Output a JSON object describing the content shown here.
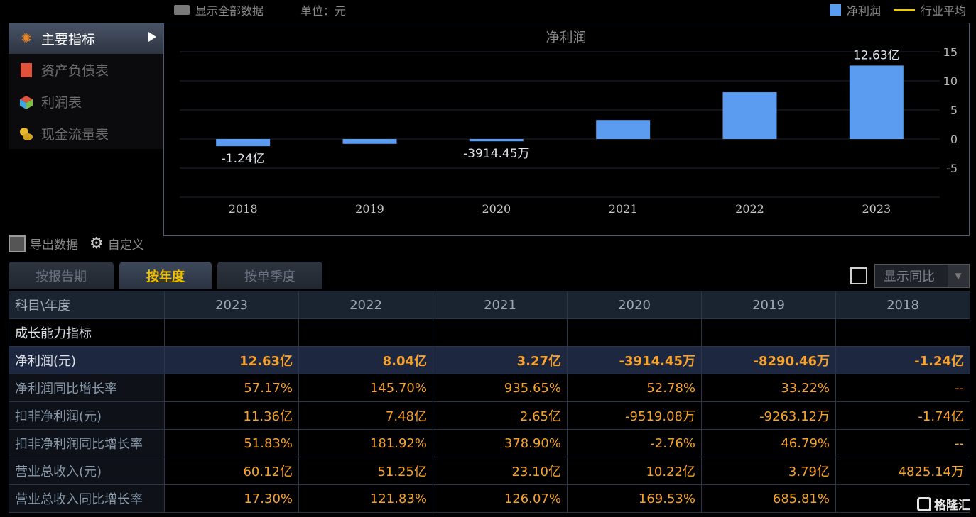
{
  "topbar": {
    "show_all": "显示全部数据",
    "unit": "单位：元",
    "legend_series": "净利润",
    "legend_avg": "行业平均"
  },
  "sidebar": {
    "items": [
      {
        "label": "主要指标",
        "icon": "asterisk-icon",
        "active": true
      },
      {
        "label": "资产负债表",
        "icon": "document-icon",
        "active": false
      },
      {
        "label": "利润表",
        "icon": "cube-icon",
        "active": false
      },
      {
        "label": "现金流量表",
        "icon": "coins-icon",
        "active": false
      }
    ]
  },
  "chart_data": {
    "type": "bar",
    "title": "净利润",
    "categories": [
      "2018",
      "2019",
      "2020",
      "2021",
      "2022",
      "2023"
    ],
    "series": [
      {
        "name": "净利润",
        "values": [
          -1.24,
          -0.829,
          -0.391,
          3.27,
          8.04,
          12.63
        ],
        "color": "#5b9cf0"
      }
    ],
    "data_labels": [
      "-1.24亿",
      "",
      "-3914.45万",
      "",
      "",
      "12.63亿"
    ],
    "y_ticks": [
      "15",
      "10",
      "5",
      "0",
      "-5"
    ],
    "ylim": [
      -10,
      15
    ],
    "y_axis_side": "right",
    "grid": true
  },
  "tools": {
    "export": "导出数据",
    "custom": "自定义"
  },
  "tabs": [
    {
      "label": "按报告期",
      "active": false
    },
    {
      "label": "按年度",
      "active": true
    },
    {
      "label": "按单季度",
      "active": false
    }
  ],
  "yoy": {
    "label": "显示同比",
    "checked": false
  },
  "table": {
    "header": [
      "科目\\年度",
      "2023",
      "2022",
      "2021",
      "2020",
      "2019",
      "2018"
    ],
    "section": "成长能力指标",
    "rows": [
      {
        "name": "净利润(元)",
        "values": [
          "12.63亿",
          "8.04亿",
          "3.27亿",
          "-3914.45万",
          "-8290.46万",
          "-1.24亿"
        ],
        "highlight": true
      },
      {
        "name": "净利润同比增长率",
        "values": [
          "57.17%",
          "145.70%",
          "935.65%",
          "52.78%",
          "33.22%",
          "--"
        ]
      },
      {
        "name": "扣非净利润(元)",
        "values": [
          "11.36亿",
          "7.48亿",
          "2.65亿",
          "-9519.08万",
          "-9263.12万",
          "-1.74亿"
        ]
      },
      {
        "name": "扣非净利润同比增长率",
        "values": [
          "51.83%",
          "181.92%",
          "378.90%",
          "-2.76%",
          "46.79%",
          "--"
        ]
      },
      {
        "name": "营业总收入(元)",
        "values": [
          "60.12亿",
          "51.25亿",
          "23.10亿",
          "10.22亿",
          "3.79亿",
          "4825.14万"
        ]
      },
      {
        "name": "营业总收入同比增长率",
        "values": [
          "17.30%",
          "121.83%",
          "126.07%",
          "169.53%",
          "685.81%",
          ""
        ]
      }
    ]
  },
  "watermark": "格隆汇",
  "colors": {
    "accent": "#f7a22d",
    "bar": "#5b9cf0",
    "tab_active": "#f0c000"
  }
}
